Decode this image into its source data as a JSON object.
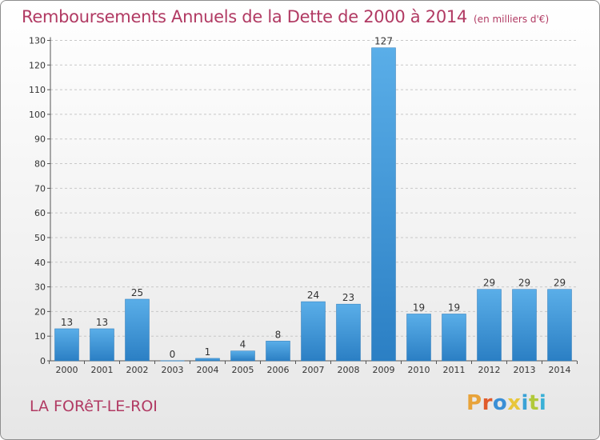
{
  "header": {
    "title": "Remboursements Annuels de la Dette de 2000 à 2014",
    "subtitle": "(en milliers d'€)"
  },
  "footer": {
    "place": "LA FORêT-LE-ROI",
    "logo_text": "Proxiti",
    "logo_colors": [
      "#e8a33a",
      "#e05a2b",
      "#3a8fd6",
      "#e8c63a",
      "#3aa2d6",
      "#b1c93a",
      "#3ab0d6"
    ]
  },
  "colors": {
    "title": "#b13a63",
    "bar_top": "#5aaee8",
    "bar_bottom": "#2b7fc4",
    "axis": "#555555",
    "grid": "#c8c8c8"
  },
  "chart_data": {
    "type": "bar",
    "categories": [
      "2000",
      "2001",
      "2002",
      "2003",
      "2004",
      "2005",
      "2006",
      "2007",
      "2008",
      "2009",
      "2010",
      "2011",
      "2012",
      "2013",
      "2014"
    ],
    "values": [
      13,
      13,
      25,
      0,
      1,
      4,
      8,
      24,
      23,
      127,
      19,
      19,
      29,
      29,
      29
    ],
    "ylim": [
      0,
      130
    ],
    "yticks": [
      0,
      10,
      20,
      30,
      40,
      50,
      60,
      70,
      80,
      90,
      100,
      110,
      120,
      130
    ],
    "grid": true,
    "grid_style": "dashed horizontal",
    "data_labels": true
  }
}
